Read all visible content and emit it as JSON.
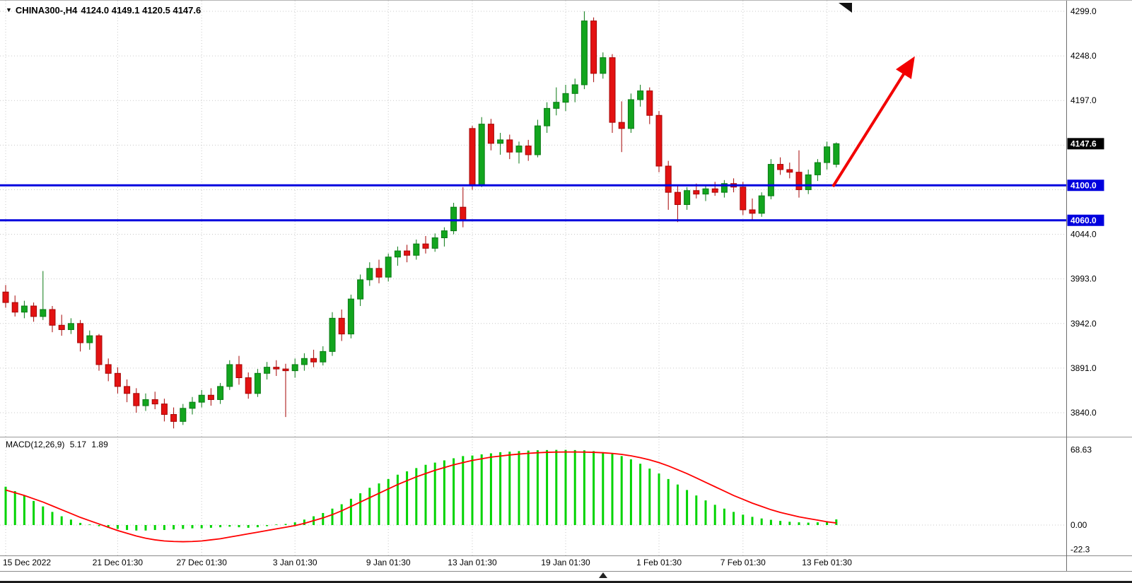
{
  "header": {
    "dropdown_icon": "▼",
    "symbol": "CHINA300-,H4",
    "ohlc": "4124.0 4149.1 4120.5 4147.6"
  },
  "colors": {
    "background": "#FFFFFF",
    "grid": "#C9C9C9",
    "bull": "#12A51E",
    "bull_border": "#0A7A14",
    "bear": "#E31212",
    "bear_border": "#A60606",
    "support_line": "#0000DE",
    "macd_bar": "#00D400",
    "macd_signal": "#FF0000",
    "arrow": "#F20000",
    "axis_text": "#000000",
    "current_badge_bg": "#000000"
  },
  "chart_data": {
    "type": "candlestick",
    "symbol": "CHINA300-",
    "timeframe": "H4",
    "last_ohlc": {
      "open": 4124.0,
      "high": 4149.1,
      "low": 4120.5,
      "close": 4147.6
    },
    "main": {
      "ylim": [
        3822,
        4299
      ],
      "grid_levels": [
        4299,
        4248,
        4197,
        4146,
        4095,
        4044,
        3993,
        3942,
        3891,
        3840
      ],
      "y_axis_labels": [
        {
          "text": "4299.0",
          "price": 4299
        },
        {
          "text": "4248.0",
          "price": 4248
        },
        {
          "text": "4197.0",
          "price": 4197
        },
        {
          "text": "4044.0",
          "price": 4044
        },
        {
          "text": "3993.0",
          "price": 3993
        },
        {
          "text": "3942.0",
          "price": 3942
        },
        {
          "text": "3891.0",
          "price": 3891
        },
        {
          "text": "3840.0",
          "price": 3840
        }
      ],
      "current_price": {
        "label": "4147.6",
        "price": 4147.6
      },
      "support_lines": [
        {
          "label": "4100.0",
          "price": 4100.0
        },
        {
          "label": "4060.0",
          "price": 4060.0
        }
      ],
      "candles": [
        [
          3978,
          3986,
          3960,
          3966
        ],
        [
          3966,
          3974,
          3950,
          3955
        ],
        [
          3955,
          3968,
          3948,
          3962
        ],
        [
          3962,
          3966,
          3944,
          3950
        ],
        [
          3950,
          4002,
          3946,
          3958
        ],
        [
          3958,
          3962,
          3932,
          3940
        ],
        [
          3940,
          3952,
          3928,
          3935
        ],
        [
          3935,
          3948,
          3930,
          3942
        ],
        [
          3942,
          3946,
          3910,
          3920
        ],
        [
          3920,
          3934,
          3912,
          3928
        ],
        [
          3928,
          3930,
          3888,
          3895
        ],
        [
          3895,
          3902,
          3876,
          3885
        ],
        [
          3885,
          3892,
          3862,
          3870
        ],
        [
          3870,
          3878,
          3852,
          3862
        ],
        [
          3862,
          3868,
          3840,
          3848
        ],
        [
          3848,
          3862,
          3842,
          3855
        ],
        [
          3855,
          3864,
          3844,
          3850
        ],
        [
          3850,
          3856,
          3830,
          3838
        ],
        [
          3838,
          3846,
          3822,
          3830
        ],
        [
          3830,
          3850,
          3826,
          3845
        ],
        [
          3845,
          3858,
          3838,
          3852
        ],
        [
          3852,
          3866,
          3846,
          3860
        ],
        [
          3860,
          3868,
          3848,
          3855
        ],
        [
          3855,
          3874,
          3850,
          3870
        ],
        [
          3870,
          3900,
          3866,
          3895
        ],
        [
          3895,
          3905,
          3872,
          3880
        ],
        [
          3880,
          3886,
          3856,
          3862
        ],
        [
          3862,
          3890,
          3858,
          3885
        ],
        [
          3885,
          3898,
          3878,
          3892
        ],
        [
          3892,
          3900,
          3882,
          3890
        ],
        [
          3890,
          3896,
          3835,
          3888
        ],
        [
          3888,
          3902,
          3880,
          3895
        ],
        [
          3895,
          3908,
          3888,
          3902
        ],
        [
          3902,
          3912,
          3892,
          3898
        ],
        [
          3898,
          3916,
          3894,
          3910
        ],
        [
          3910,
          3955,
          3905,
          3948
        ],
        [
          3948,
          3958,
          3922,
          3930
        ],
        [
          3930,
          3975,
          3925,
          3970
        ],
        [
          3970,
          3998,
          3962,
          3992
        ],
        [
          3992,
          4012,
          3985,
          4005
        ],
        [
          4005,
          4015,
          3988,
          3995
        ],
        [
          3995,
          4022,
          3990,
          4018
        ],
        [
          4018,
          4030,
          4008,
          4025
        ],
        [
          4025,
          4032,
          4012,
          4020
        ],
        [
          4020,
          4038,
          4015,
          4033
        ],
        [
          4033,
          4042,
          4022,
          4028
        ],
        [
          4028,
          4045,
          4024,
          4040
        ],
        [
          4040,
          4052,
          4030,
          4048
        ],
        [
          4048,
          4080,
          4044,
          4075
        ],
        [
          4075,
          4098,
          4052,
          4060
        ],
        [
          4165,
          4168,
          4095,
          4100
        ],
        [
          4100,
          4178,
          4098,
          4170
        ],
        [
          4170,
          4176,
          4140,
          4148
        ],
        [
          4148,
          4160,
          4135,
          4152
        ],
        [
          4152,
          4158,
          4130,
          4138
        ],
        [
          4138,
          4150,
          4125,
          4145
        ],
        [
          4145,
          4152,
          4128,
          4135
        ],
        [
          4135,
          4175,
          4132,
          4168
        ],
        [
          4168,
          4195,
          4160,
          4188
        ],
        [
          4188,
          4212,
          4180,
          4195
        ],
        [
          4195,
          4215,
          4185,
          4205
        ],
        [
          4205,
          4222,
          4195,
          4215
        ],
        [
          4215,
          4299,
          4210,
          4288
        ],
        [
          4288,
          4292,
          4218,
          4228
        ],
        [
          4228,
          4252,
          4222,
          4246
        ],
        [
          4246,
          4250,
          4160,
          4172
        ],
        [
          4172,
          4196,
          4138,
          4165
        ],
        [
          4165,
          4205,
          4160,
          4198
        ],
        [
          4198,
          4215,
          4190,
          4208
        ],
        [
          4208,
          4212,
          4170,
          4180
        ],
        [
          4180,
          4185,
          4115,
          4122
        ],
        [
          4122,
          4128,
          4072,
          4092
        ],
        [
          4092,
          4100,
          4058,
          4078
        ],
        [
          4078,
          4098,
          4072,
          4094
        ],
        [
          4094,
          4102,
          4085,
          4090
        ],
        [
          4090,
          4100,
          4082,
          4096
        ],
        [
          4096,
          4104,
          4088,
          4092
        ],
        [
          4092,
          4106,
          4086,
          4102
        ],
        [
          4102,
          4108,
          4092,
          4098
        ],
        [
          4098,
          4104,
          4066,
          4072
        ],
        [
          4072,
          4085,
          4060,
          4068
        ],
        [
          4068,
          4092,
          4064,
          4088
        ],
        [
          4088,
          4130,
          4084,
          4124
        ],
        [
          4124,
          4132,
          4112,
          4118
        ],
        [
          4118,
          4126,
          4108,
          4115
        ],
        [
          4115,
          4140,
          4086,
          4095
        ],
        [
          4095,
          4118,
          4090,
          4112
        ],
        [
          4112,
          4130,
          4105,
          4126
        ],
        [
          4126,
          4150,
          4118,
          4144
        ],
        [
          4124,
          4149.1,
          4120.5,
          4147.6
        ]
      ]
    },
    "x_axis": {
      "labels": [
        {
          "text": "15 Dec 2022",
          "index": 0
        },
        {
          "text": "21 Dec 01:30",
          "index": 12
        },
        {
          "text": "27 Dec 01:30",
          "index": 21
        },
        {
          "text": "3 Jan 01:30",
          "index": 31
        },
        {
          "text": "9 Jan 01:30",
          "index": 41
        },
        {
          "text": "13 Jan 01:30",
          "index": 50
        },
        {
          "text": "19 Jan 01:30",
          "index": 60
        },
        {
          "text": "1 Feb 01:30",
          "index": 70
        },
        {
          "text": "7 Feb 01:30",
          "index": 79
        },
        {
          "text": "13 Feb 01:30",
          "index": 88
        }
      ]
    },
    "macd": {
      "title": "MACD(12,26,9)",
      "macd_value": "5.17",
      "signal_value": "1.89",
      "axis_labels": [
        {
          "text": "68.63",
          "value": 68.63
        },
        {
          "text": "0.00",
          "value": 0
        },
        {
          "text": "-22.3",
          "value": -22.3
        }
      ],
      "histogram": [
        35,
        31,
        27,
        22,
        17,
        12,
        8,
        5,
        2,
        0.5,
        -1,
        -2.5,
        -3.5,
        -4.5,
        -5,
        -5,
        -4.5,
        -4.5,
        -4,
        -3.5,
        -3,
        -3,
        -2.5,
        -2,
        -1.5,
        -2,
        -2.5,
        -2,
        -1,
        0.5,
        1,
        2.5,
        5,
        8,
        11,
        15,
        19,
        24,
        29,
        34,
        38,
        42,
        46,
        49,
        52,
        55,
        57,
        59,
        61,
        63,
        63.5,
        64.5,
        65.5,
        66.5,
        67,
        67.5,
        68,
        68.3,
        68.5,
        68.6,
        68.63,
        68.5,
        68.2,
        67.5,
        66.5,
        65,
        63,
        60,
        56,
        51.5,
        47,
        42,
        37,
        32,
        27,
        22.5,
        18.5,
        15,
        12,
        9.5,
        7.5,
        6,
        4.8,
        3.8,
        3,
        2.5,
        2.2,
        2.5,
        3.5,
        5.17
      ],
      "signal": [
        32,
        29.5,
        27,
        24,
        21,
        17.5,
        14,
        10.5,
        7,
        4,
        1,
        -2,
        -5,
        -7.5,
        -10,
        -12,
        -13.5,
        -14.5,
        -15,
        -15.2,
        -15,
        -14.5,
        -13.5,
        -12.5,
        -11,
        -9.5,
        -8,
        -6.5,
        -5,
        -3.5,
        -2,
        -0.5,
        1.5,
        4,
        6.5,
        9.5,
        13,
        17,
        21,
        25,
        29,
        33,
        37,
        40.5,
        44,
        47,
        50,
        52.5,
        55,
        57,
        59,
        60.5,
        62,
        63,
        64,
        64.8,
        65.5,
        66,
        66.4,
        66.6,
        66.7,
        66.7,
        66.6,
        66.4,
        66,
        65.4,
        64.5,
        63.2,
        61.5,
        59.5,
        57,
        54,
        50.5,
        47,
        43,
        39,
        35,
        31,
        27,
        23.5,
        20,
        17,
        14,
        11.5,
        9.5,
        7.5,
        6,
        4.5,
        3,
        1.89
      ]
    },
    "annotations": {
      "arrow": {
        "color": "#F20000",
        "from": [
          1178,
          263
        ],
        "to": [
          1288,
          88
        ]
      }
    }
  }
}
